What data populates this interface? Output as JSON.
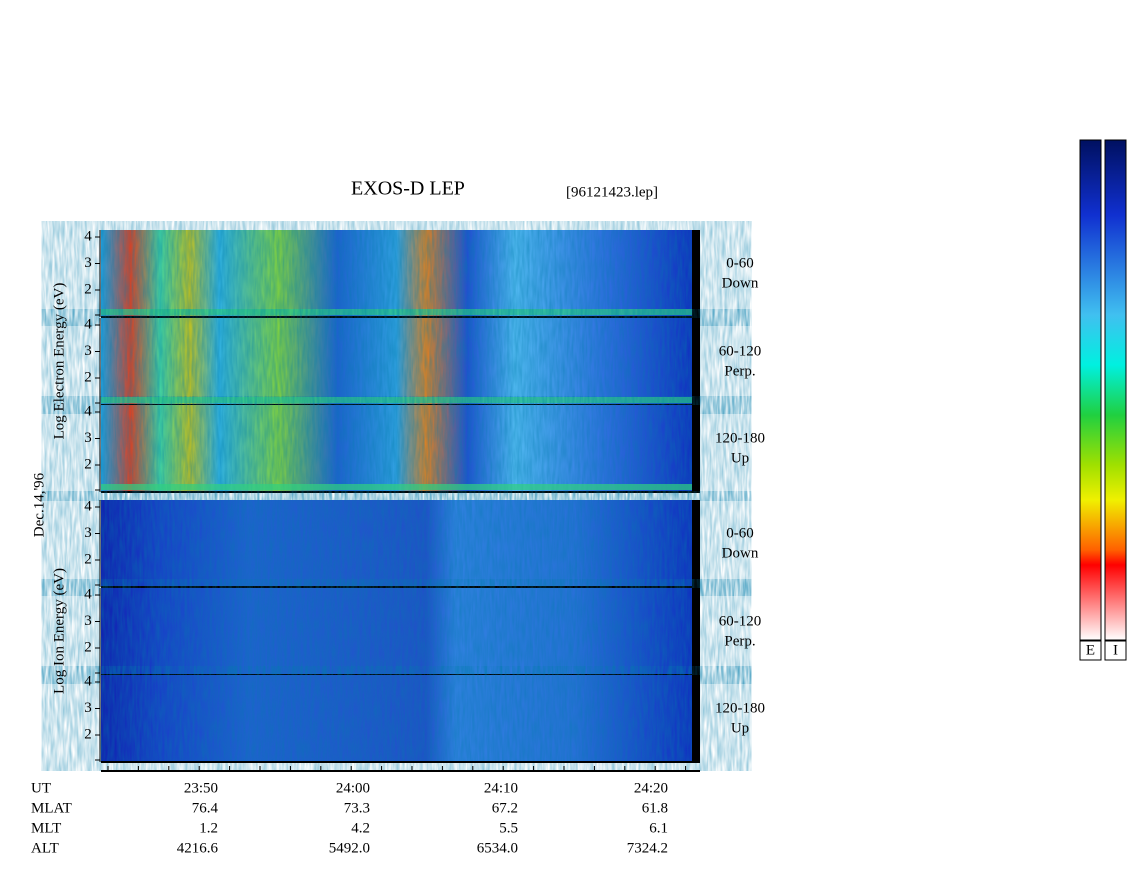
{
  "header": {
    "title": "EXOS-D LEP",
    "file": "[96121423.lep]"
  },
  "date": "Dec.14,'96",
  "groups": [
    {
      "label": "Log  Electron  Energy (eV)",
      "panels": [
        {
          "yticks": [
            "4",
            "3",
            "2"
          ],
          "angle": "0-60",
          "direction": "Down"
        },
        {
          "yticks": [
            "4",
            "3",
            "2"
          ],
          "angle": "60-120",
          "direction": "Perp."
        },
        {
          "yticks": [
            "4",
            "3",
            "2"
          ],
          "angle": "120-180",
          "direction": "Up"
        }
      ]
    },
    {
      "label": "Log  Ion  Energy (eV)",
      "panels": [
        {
          "yticks": [
            "4",
            "3",
            "2"
          ],
          "angle": "0-60",
          "direction": "Down"
        },
        {
          "yticks": [
            "4",
            "3",
            "2"
          ],
          "angle": "60-120",
          "direction": "Perp."
        },
        {
          "yticks": [
            "4",
            "3",
            "2"
          ],
          "angle": "120-180",
          "direction": "Up"
        }
      ]
    }
  ],
  "axis": {
    "rows": [
      {
        "label": "UT",
        "values": [
          "23:50",
          "24:00",
          "24:10",
          "24:20"
        ]
      },
      {
        "label": "MLAT",
        "values": [
          "76.4",
          "73.3",
          "67.2",
          "61.8"
        ]
      },
      {
        "label": "MLT",
        "values": [
          "1.2",
          "4.2",
          "5.5",
          "6.1"
        ]
      },
      {
        "label": "ALT",
        "values": [
          "4216.6",
          "5492.0",
          "6534.0",
          "7324.2"
        ]
      }
    ]
  },
  "colorbars": [
    "E",
    "I"
  ]
}
